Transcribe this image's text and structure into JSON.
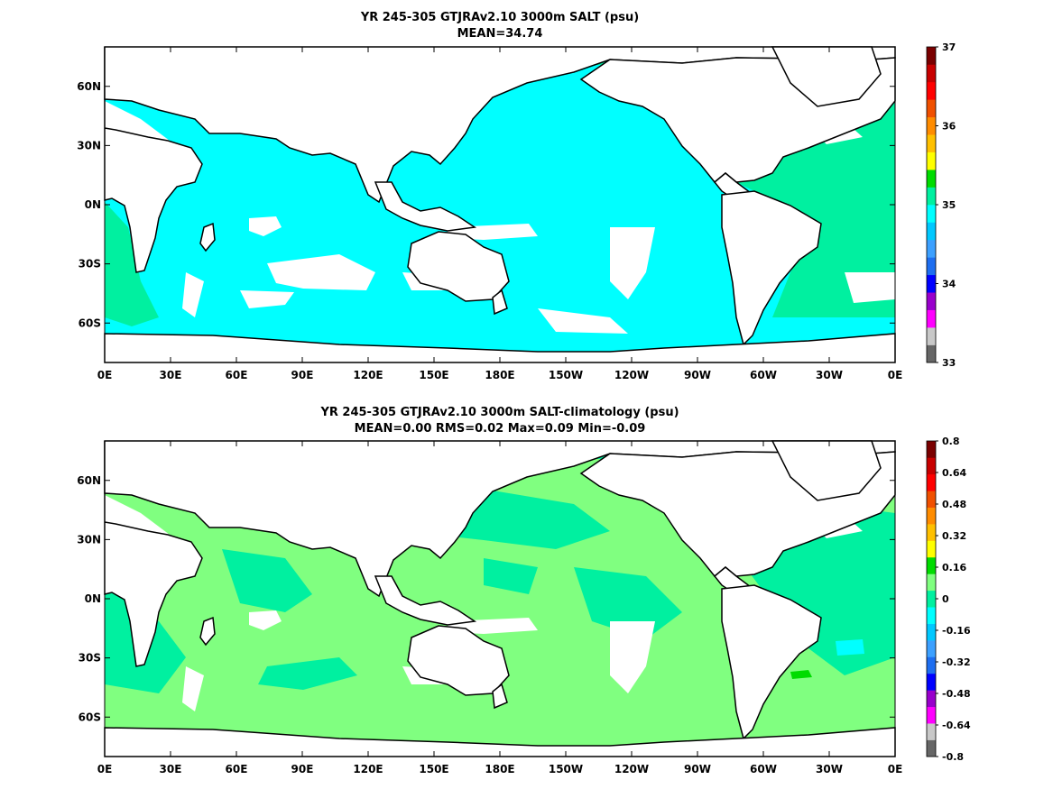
{
  "chart_data": [
    {
      "type": "heatmap",
      "title": "YR 245-305 GTJRAv2.10 3000m SALT (psu)",
      "subtitle": "MEAN=34.74",
      "x_ticks": [
        "0E",
        "30E",
        "60E",
        "90E",
        "120E",
        "150E",
        "180E",
        "150W",
        "120W",
        "90W",
        "60W",
        "30W",
        "0E"
      ],
      "y_ticks": [
        "60N",
        "30N",
        "0N",
        "30S",
        "60S"
      ],
      "colorbar": {
        "min": 33,
        "max": 37,
        "labels": [
          "37",
          "36",
          "35",
          "34",
          "33"
        ],
        "colors": [
          "#666666",
          "#c8c8c8",
          "#ff00ff",
          "#9900cc",
          "#0000ff",
          "#1e6ef0",
          "#3ca0ff",
          "#00c8ff",
          "#00ffff",
          "#00f0a0",
          "#00dc00",
          "#ffff00",
          "#ffc000",
          "#ff8c00",
          "#f05000",
          "#ff0000",
          "#c80000",
          "#7a0000"
        ]
      },
      "fields": {
        "dominant_pacific_indian_southern": "#00ffff",
        "dominant_atlantic": "#00f0a0"
      }
    },
    {
      "type": "heatmap",
      "title": "YR 245-305 GTJRAv2.10 3000m SALT-climatology (psu)",
      "subtitle": "MEAN=0.00   RMS=0.02   Max=0.09   Min=-0.09",
      "x_ticks": [
        "0E",
        "30E",
        "60E",
        "90E",
        "120E",
        "150E",
        "180E",
        "150W",
        "120W",
        "90W",
        "60W",
        "30W",
        "0E"
      ],
      "y_ticks": [
        "60N",
        "30N",
        "0N",
        "30S",
        "60S"
      ],
      "colorbar": {
        "min": -0.8,
        "max": 0.8,
        "labels": [
          "0.8",
          "0.64",
          "0.48",
          "0.32",
          "0.16",
          "0",
          "-0.16",
          "-0.32",
          "-0.48",
          "-0.64",
          "-0.8"
        ],
        "colors": [
          "#666666",
          "#c8c8c8",
          "#ff00ff",
          "#9900cc",
          "#0000ff",
          "#1e6ef0",
          "#3ca0ff",
          "#00c8ff",
          "#00ffff",
          "#00f0a0",
          "#80ff80",
          "#00dc00",
          "#ffff00",
          "#ffc000",
          "#ff8c00",
          "#f05000",
          "#ff0000",
          "#c80000",
          "#7a0000"
        ]
      },
      "fields": {
        "dominant_positive": "#80ff80",
        "dominant_negative": "#00f0a0"
      }
    }
  ]
}
